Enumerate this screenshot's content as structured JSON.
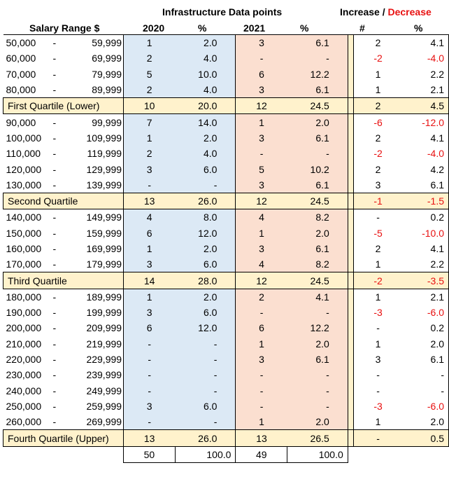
{
  "header": {
    "title": "Infrastructure Data points",
    "increase": "Increase",
    "slash": " / ",
    "decrease": "Decrease",
    "salary_range": "Salary Range $",
    "col_2020": "2020",
    "col_pct_a": "%",
    "col_2021": "2021",
    "col_pct_b": "%",
    "col_num": "#",
    "col_pct_c": "%"
  },
  "rows": [
    {
      "lo": "50,000",
      "sep": "-",
      "hi": "59,999",
      "n20": "1",
      "p20": "2.0",
      "n21": "3",
      "p21": "6.1",
      "dn": "2",
      "dp": "4.1",
      "dn_neg": false,
      "dp_neg": false
    },
    {
      "lo": "60,000",
      "sep": "-",
      "hi": "69,999",
      "n20": "2",
      "p20": "4.0",
      "n21": "-",
      "p21": "-",
      "dn": "-2",
      "dp": "-4.0",
      "dn_neg": true,
      "dp_neg": true
    },
    {
      "lo": "70,000",
      "sep": "-",
      "hi": "79,999",
      "n20": "5",
      "p20": "10.0",
      "n21": "6",
      "p21": "12.2",
      "dn": "1",
      "dp": "2.2",
      "dn_neg": false,
      "dp_neg": false
    },
    {
      "lo": "80,000",
      "sep": "-",
      "hi": "89,999",
      "n20": "2",
      "p20": "4.0",
      "n21": "3",
      "p21": "6.1",
      "dn": "1",
      "dp": "2.1",
      "dn_neg": false,
      "dp_neg": false
    },
    {
      "quartile": true,
      "label": "First Quartile (Lower)",
      "n20": "10",
      "p20": "20.0",
      "n21": "12",
      "p21": "24.5",
      "dn": "2",
      "dp": "4.5",
      "dn_neg": false,
      "dp_neg": false
    },
    {
      "lo": "90,000",
      "sep": "-",
      "hi": "99,999",
      "n20": "7",
      "p20": "14.0",
      "n21": "1",
      "p21": "2.0",
      "dn": "-6",
      "dp": "-12.0",
      "dn_neg": true,
      "dp_neg": true
    },
    {
      "lo": "100,000",
      "sep": "-",
      "hi": "109,999",
      "n20": "1",
      "p20": "2.0",
      "n21": "3",
      "p21": "6.1",
      "dn": "2",
      "dp": "4.1",
      "dn_neg": false,
      "dp_neg": false
    },
    {
      "lo": "110,000",
      "sep": "-",
      "hi": "119,999",
      "n20": "2",
      "p20": "4.0",
      "n21": "-",
      "p21": "-",
      "dn": "-2",
      "dp": "-4.0",
      "dn_neg": true,
      "dp_neg": true
    },
    {
      "lo": "120,000",
      "sep": "-",
      "hi": "129,999",
      "n20": "3",
      "p20": "6.0",
      "n21": "5",
      "p21": "10.2",
      "dn": "2",
      "dp": "4.2",
      "dn_neg": false,
      "dp_neg": false
    },
    {
      "lo": "130,000",
      "sep": "-",
      "hi": "139,999",
      "n20": "-",
      "p20": "-",
      "n21": "3",
      "p21": "6.1",
      "dn": "3",
      "dp": "6.1",
      "dn_neg": false,
      "dp_neg": false
    },
    {
      "quartile": true,
      "label": "Second Quartile",
      "n20": "13",
      "p20": "26.0",
      "n21": "12",
      "p21": "24.5",
      "dn": "-1",
      "dp": "-1.5",
      "dn_neg": true,
      "dp_neg": true
    },
    {
      "lo": "140,000",
      "sep": "-",
      "hi": "149,999",
      "n20": "4",
      "p20": "8.0",
      "n21": "4",
      "p21": "8.2",
      "dn": "-",
      "dp": "0.2",
      "dn_neg": false,
      "dp_neg": false
    },
    {
      "lo": "150,000",
      "sep": "-",
      "hi": "159,999",
      "n20": "6",
      "p20": "12.0",
      "n21": "1",
      "p21": "2.0",
      "dn": "-5",
      "dp": "-10.0",
      "dn_neg": true,
      "dp_neg": true
    },
    {
      "lo": "160,000",
      "sep": "-",
      "hi": "169,999",
      "n20": "1",
      "p20": "2.0",
      "n21": "3",
      "p21": "6.1",
      "dn": "2",
      "dp": "4.1",
      "dn_neg": false,
      "dp_neg": false
    },
    {
      "lo": "170,000",
      "sep": "-",
      "hi": "179,999",
      "n20": "3",
      "p20": "6.0",
      "n21": "4",
      "p21": "8.2",
      "dn": "1",
      "dp": "2.2",
      "dn_neg": false,
      "dp_neg": false
    },
    {
      "quartile": true,
      "label": "Third Quartile",
      "n20": "14",
      "p20": "28.0",
      "n21": "12",
      "p21": "24.5",
      "dn": "-2",
      "dp": "-3.5",
      "dn_neg": true,
      "dp_neg": true
    },
    {
      "lo": "180,000",
      "sep": "-",
      "hi": "189,999",
      "n20": "1",
      "p20": "2.0",
      "n21": "2",
      "p21": "4.1",
      "dn": "1",
      "dp": "2.1",
      "dn_neg": false,
      "dp_neg": false
    },
    {
      "lo": "190,000",
      "sep": "-",
      "hi": "199,999",
      "n20": "3",
      "p20": "6.0",
      "n21": "-",
      "p21": "-",
      "dn": "-3",
      "dp": "-6.0",
      "dn_neg": true,
      "dp_neg": true
    },
    {
      "lo": "200,000",
      "sep": "-",
      "hi": "209,999",
      "n20": "6",
      "p20": "12.0",
      "n21": "6",
      "p21": "12.2",
      "dn": "-",
      "dp": "0.2",
      "dn_neg": false,
      "dp_neg": false
    },
    {
      "lo": "210,000",
      "sep": "-",
      "hi": "219,999",
      "n20": "-",
      "p20": "-",
      "n21": "1",
      "p21": "2.0",
      "dn": "1",
      "dp": "2.0",
      "dn_neg": false,
      "dp_neg": false
    },
    {
      "lo": "220,000",
      "sep": "-",
      "hi": "229,999",
      "n20": "-",
      "p20": "-",
      "n21": "3",
      "p21": "6.1",
      "dn": "3",
      "dp": "6.1",
      "dn_neg": false,
      "dp_neg": false
    },
    {
      "lo": "230,000",
      "sep": "-",
      "hi": "239,999",
      "n20": "-",
      "p20": "-",
      "n21": "-",
      "p21": "-",
      "dn": "-",
      "dp": "-",
      "dn_neg": false,
      "dp_neg": false
    },
    {
      "lo": "240,000",
      "sep": "-",
      "hi": "249,999",
      "n20": "-",
      "p20": "-",
      "n21": "-",
      "p21": "-",
      "dn": "-",
      "dp": "-",
      "dn_neg": false,
      "dp_neg": false
    },
    {
      "lo": "250,000",
      "sep": "-",
      "hi": "259,999",
      "n20": "3",
      "p20": "6.0",
      "n21": "-",
      "p21": "-",
      "dn": "-3",
      "dp": "-6.0",
      "dn_neg": true,
      "dp_neg": true
    },
    {
      "lo": "260,000",
      "sep": "-",
      "hi": "269,999",
      "n20": "-",
      "p20": "-",
      "n21": "1",
      "p21": "2.0",
      "dn": "1",
      "dp": "2.0",
      "dn_neg": false,
      "dp_neg": false
    },
    {
      "quartile": true,
      "label": "Fourth Quartile (Upper)",
      "n20": "13",
      "p20": "26.0",
      "n21": "13",
      "p21": "26.5",
      "dn": "-",
      "dp": "0.5",
      "dn_neg": false,
      "dp_neg": false
    }
  ],
  "totals": {
    "n20": "50",
    "p20": "100.0",
    "n21": "49",
    "p21": "100.0"
  },
  "colors": {
    "col2020": "#dce9f5",
    "col2021": "#fbdfd0",
    "quartile": "#fff2cc",
    "negative": "#e81010"
  }
}
